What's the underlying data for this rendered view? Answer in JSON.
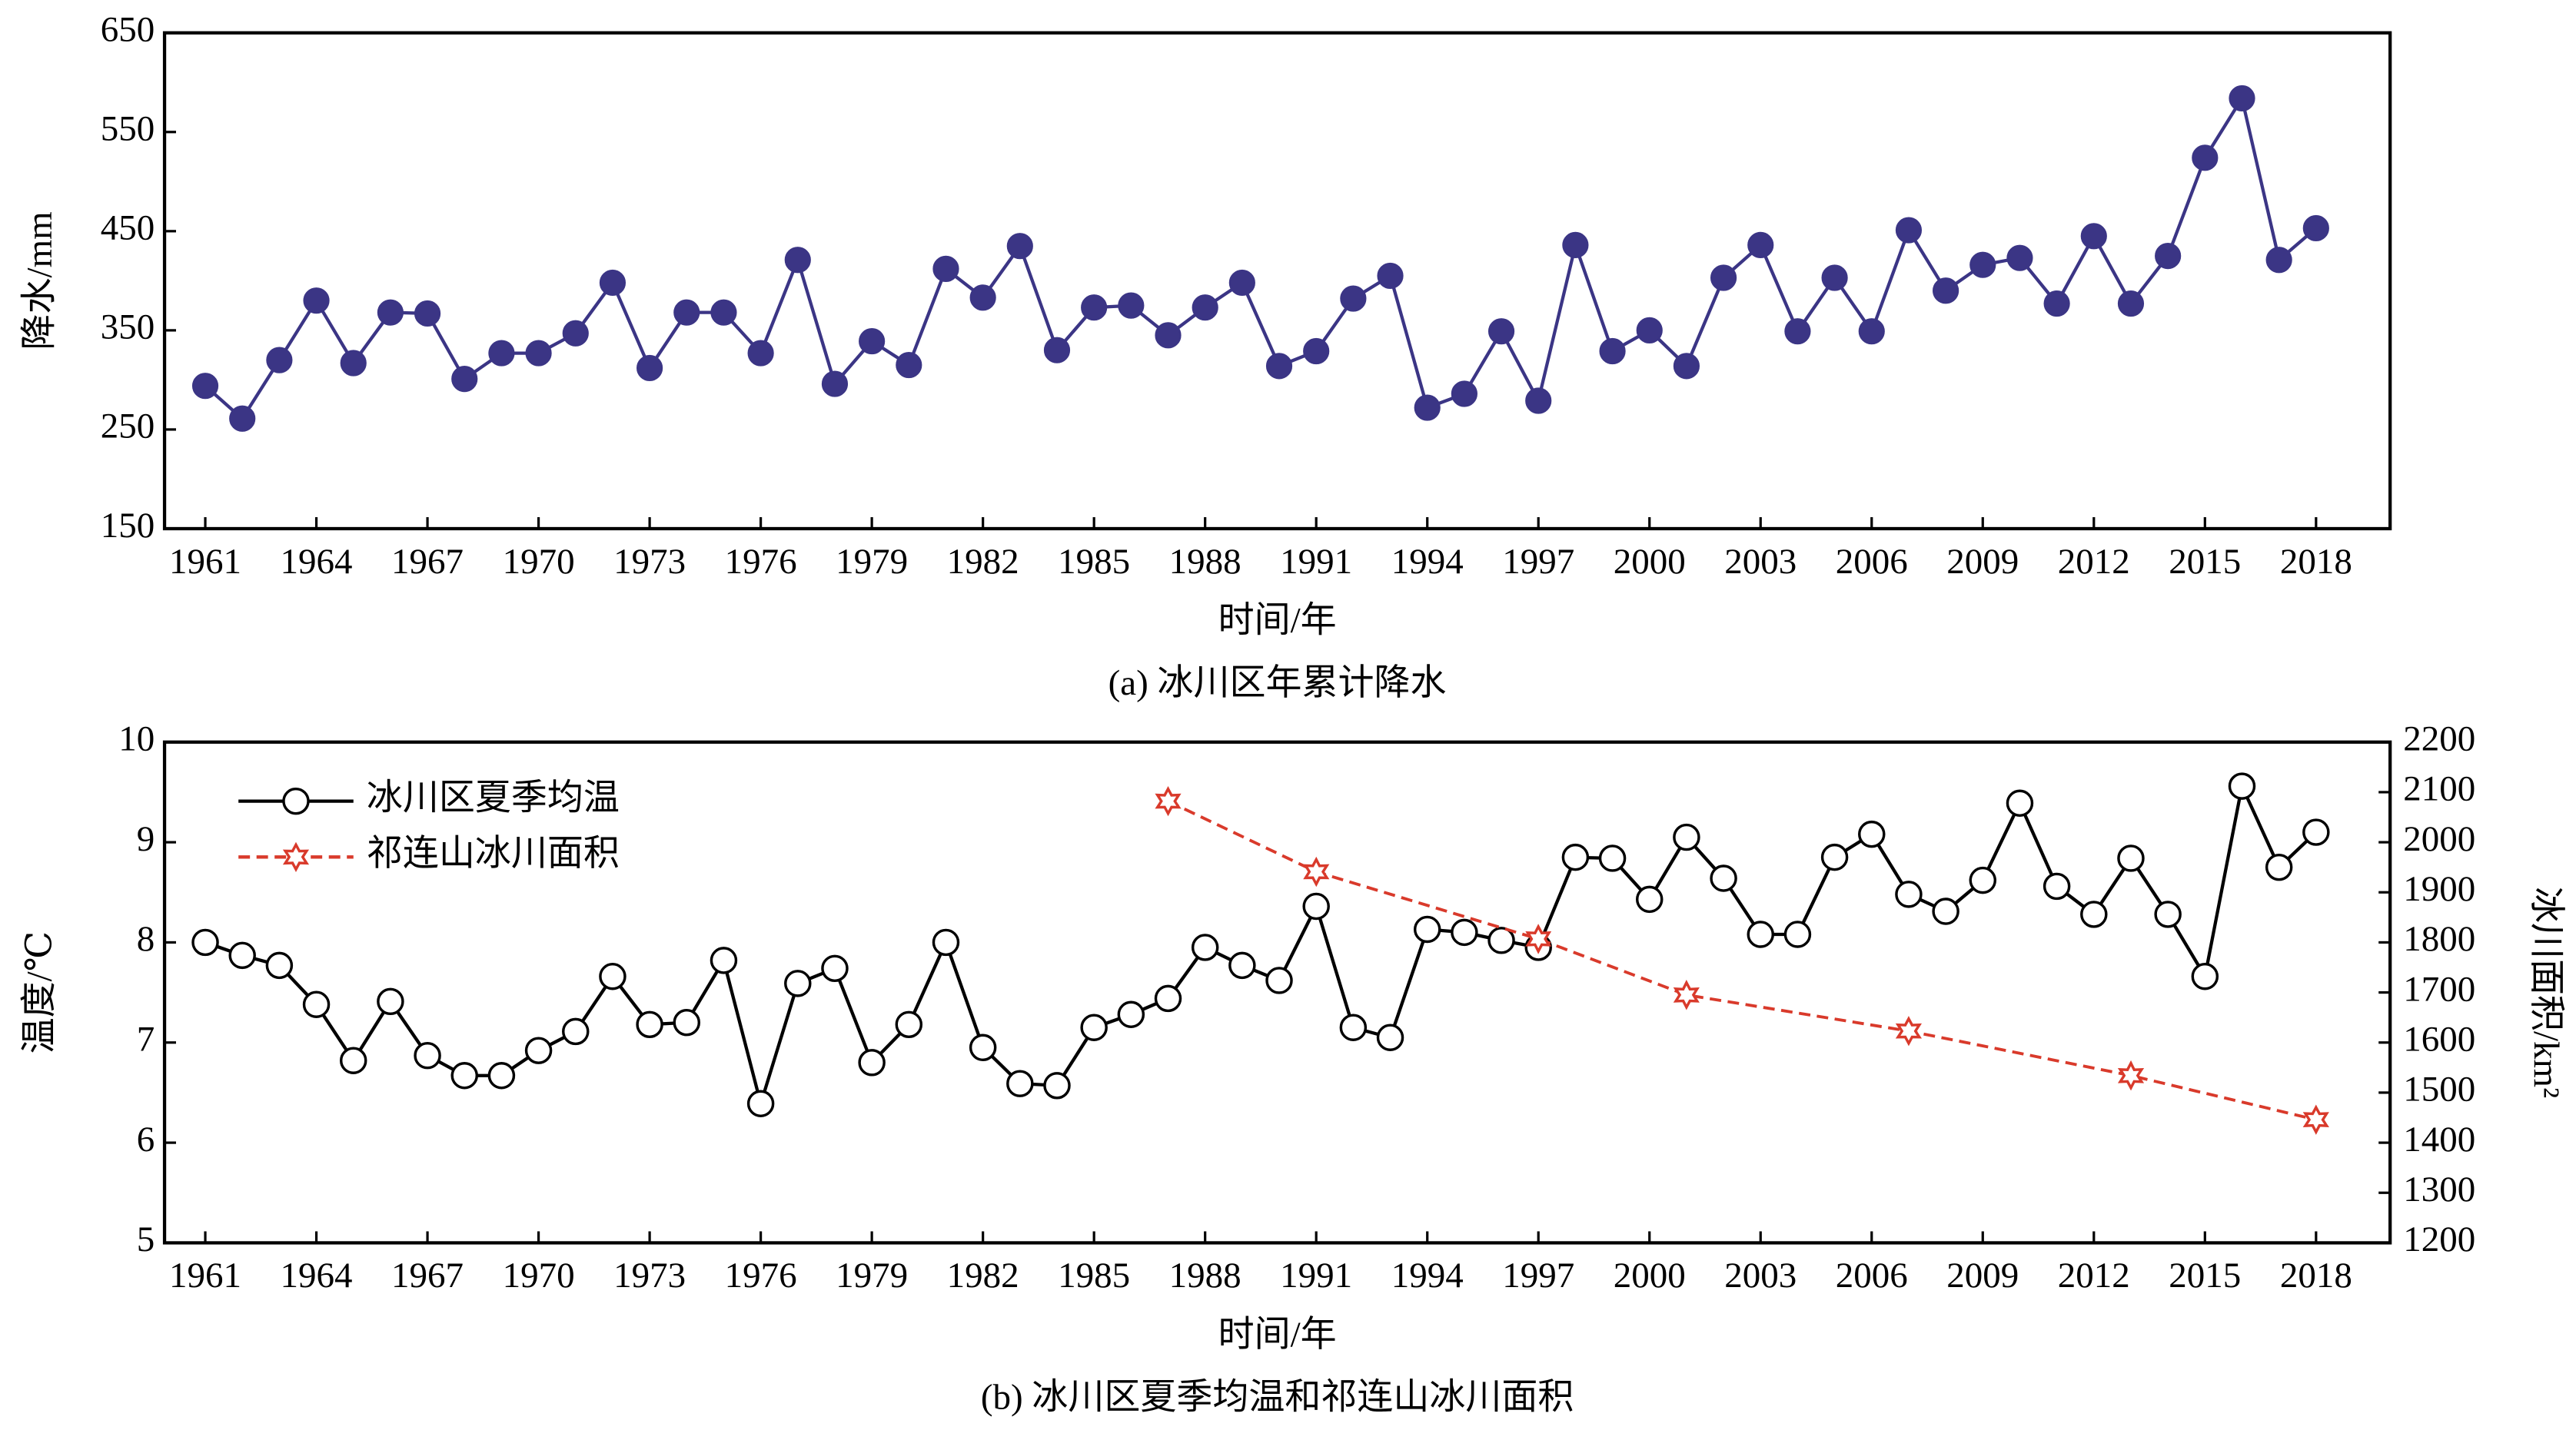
{
  "chart_data": [
    {
      "type": "line",
      "caption": "(a) 冰川区年累计降水",
      "xlabel": "时间/年",
      "ylabel": "降水/mm",
      "x": [
        1961,
        1962,
        1963,
        1964,
        1965,
        1966,
        1967,
        1968,
        1969,
        1970,
        1971,
        1972,
        1973,
        1974,
        1975,
        1976,
        1977,
        1978,
        1979,
        1980,
        1981,
        1982,
        1983,
        1984,
        1985,
        1986,
        1987,
        1988,
        1989,
        1990,
        1991,
        1992,
        1993,
        1994,
        1995,
        1996,
        1997,
        1998,
        1999,
        2000,
        2001,
        2002,
        2003,
        2004,
        2005,
        2006,
        2007,
        2008,
        2009,
        2010,
        2011,
        2012,
        2013,
        2014,
        2015,
        2016,
        2017,
        2018
      ],
      "series": [
        {
          "color": "#3b3585",
          "marker": "filled-circle",
          "values": [
            294,
            261,
            320,
            380,
            317,
            368,
            367,
            301,
            327,
            327,
            347,
            398,
            312,
            368,
            368,
            327,
            421,
            296,
            339,
            315,
            412,
            383,
            435,
            330,
            373,
            375,
            345,
            373,
            398,
            314,
            329,
            382,
            405,
            272,
            286,
            349,
            279,
            436,
            329,
            350,
            314,
            403,
            436,
            349,
            403,
            349,
            451,
            390,
            416,
            423,
            377,
            445,
            377,
            425,
            524,
            584,
            421,
            453
          ]
        }
      ],
      "xlim": [
        1959.9,
        2020.0
      ],
      "xticks": [
        1961,
        1964,
        1967,
        1970,
        1973,
        1976,
        1979,
        1982,
        1985,
        1988,
        1991,
        1994,
        1997,
        2000,
        2003,
        2006,
        2009,
        2012,
        2015,
        2018
      ],
      "ylim": [
        150,
        650
      ],
      "yticks": [
        150,
        250,
        350,
        450,
        550,
        650
      ]
    },
    {
      "type": "line",
      "caption": "(b) 冰川区夏季均温和祁连山冰川面积",
      "xlabel": "时间/年",
      "ylabel": "温度/℃",
      "y2label": "冰川面积/km²",
      "legend": "upper left",
      "x": [
        1961,
        1962,
        1963,
        1964,
        1965,
        1966,
        1967,
        1968,
        1969,
        1970,
        1971,
        1972,
        1973,
        1974,
        1975,
        1976,
        1977,
        1978,
        1979,
        1980,
        1981,
        1982,
        1983,
        1984,
        1985,
        1986,
        1987,
        1988,
        1989,
        1990,
        1991,
        1992,
        1993,
        1994,
        1995,
        1996,
        1997,
        1998,
        1999,
        2000,
        2001,
        2002,
        2003,
        2004,
        2005,
        2006,
        2007,
        2008,
        2009,
        2010,
        2011,
        2012,
        2013,
        2014,
        2015,
        2016,
        2017,
        2018
      ],
      "series": [
        {
          "name": "冰川区夏季均温",
          "color": "#000000",
          "marker": "open-circle",
          "values": [
            8.0,
            7.87,
            7.77,
            7.38,
            6.82,
            7.41,
            6.87,
            6.67,
            6.67,
            6.92,
            7.11,
            7.66,
            7.18,
            7.2,
            7.82,
            6.39,
            7.59,
            7.74,
            6.8,
            7.18,
            8.0,
            6.95,
            6.59,
            6.57,
            7.15,
            7.28,
            7.44,
            7.95,
            7.77,
            7.62,
            8.36,
            7.15,
            7.05,
            8.13,
            8.1,
            8.02,
            7.95,
            8.85,
            8.84,
            8.43,
            9.05,
            8.64,
            8.08,
            8.08,
            8.85,
            9.08,
            8.48,
            8.31,
            8.62,
            9.39,
            8.56,
            8.28,
            8.84,
            8.28,
            7.66,
            9.56,
            8.75,
            9.1
          ]
        },
        {
          "name": "祁连山冰川面积",
          "color": "#d93a2b",
          "marker": "star",
          "dashed": true,
          "axis": "y2",
          "x": [
            1987,
            1991,
            1997,
            2001,
            2007,
            2013,
            2018
          ],
          "values": [
            2082,
            1941,
            1807,
            1695,
            1623,
            1534,
            1446
          ]
        }
      ],
      "xlim": [
        1959.9,
        2020.0
      ],
      "xticks": [
        1961,
        1964,
        1967,
        1970,
        1973,
        1976,
        1979,
        1982,
        1985,
        1988,
        1991,
        1994,
        1997,
        2000,
        2003,
        2006,
        2009,
        2012,
        2015,
        2018
      ],
      "ylim": [
        5,
        10
      ],
      "yticks": [
        5,
        6,
        7,
        8,
        9,
        10
      ],
      "y2lim": [
        1200,
        2200
      ],
      "y2ticks": [
        1200,
        1300,
        1400,
        1500,
        1600,
        1700,
        1800,
        1900,
        2000,
        2100,
        2200
      ]
    }
  ]
}
